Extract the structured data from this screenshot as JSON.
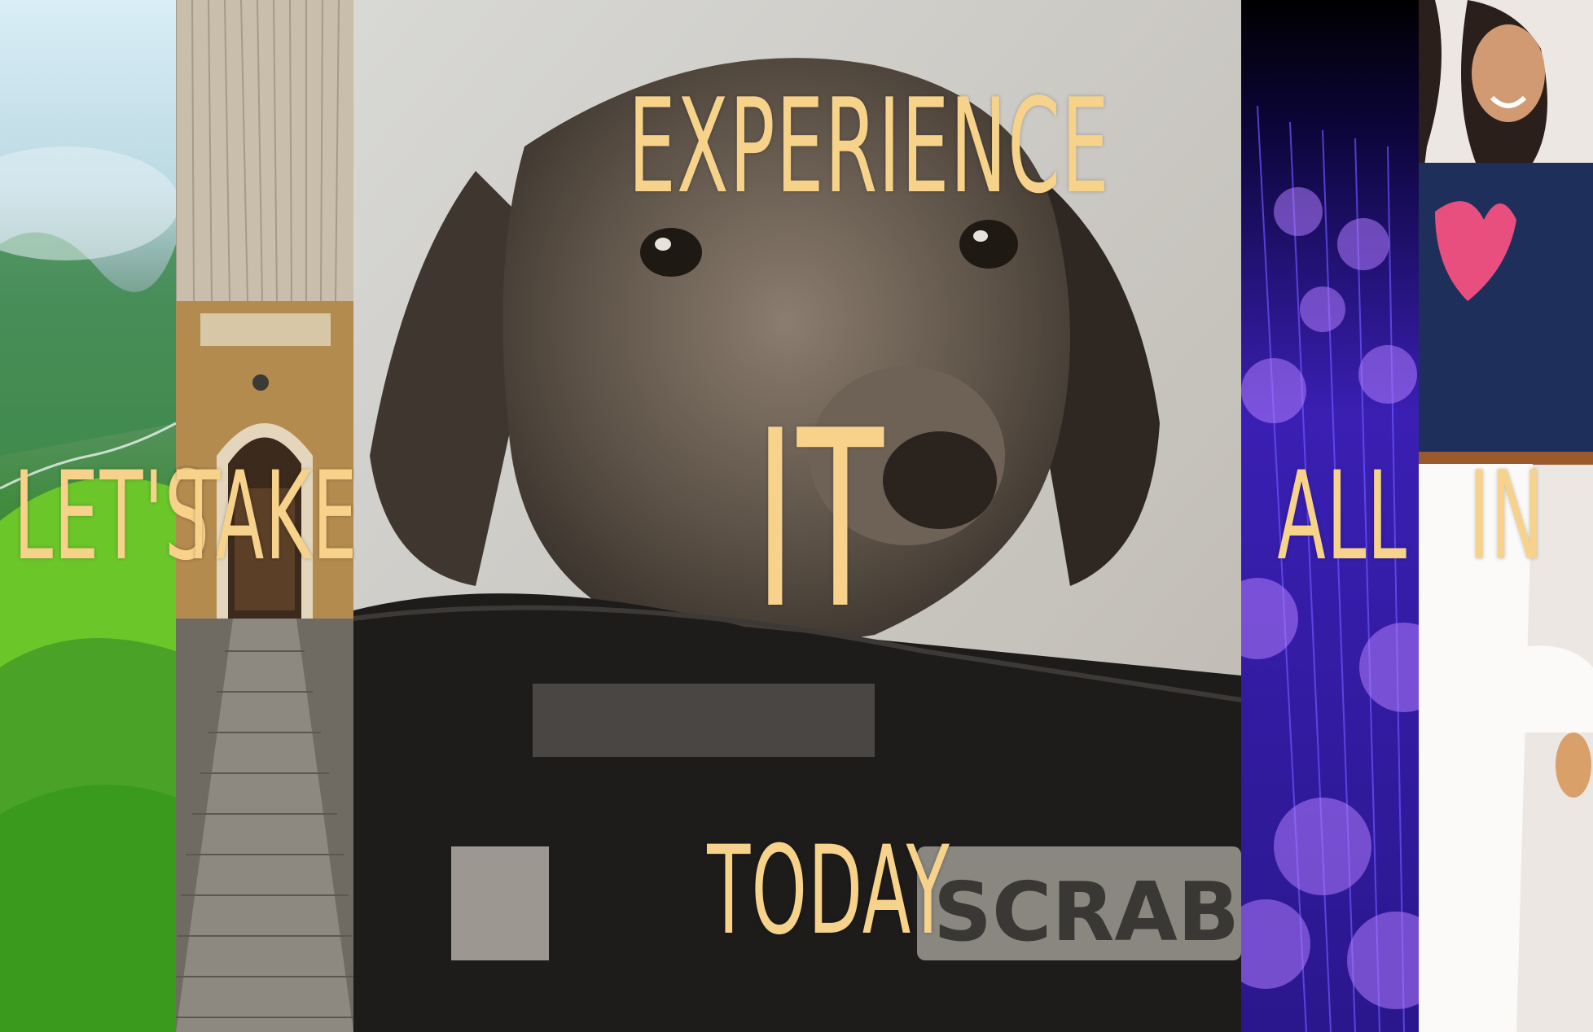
{
  "panels": [
    {
      "id": "mountains",
      "icon": "mountain-valley-image"
    },
    {
      "id": "boardwalk",
      "icon": "boardwalk-doorway-image"
    },
    {
      "id": "dog",
      "icon": "dog-on-board-game-image"
    },
    {
      "id": "fiber",
      "icon": "fiber-optic-lights-image"
    },
    {
      "id": "model",
      "icon": "smiling-woman-image"
    }
  ],
  "words": {
    "w1": "LET'S",
    "w2": "TAKE",
    "w3": "EXPERIENCE",
    "w4": "IT",
    "w5": "TODAY",
    "w6": "ALL",
    "w7": "IN"
  },
  "box_text": {
    "scrabble": "SCRAB"
  },
  "colors": {
    "text": "#f6d28a",
    "fiber": "#5a2fd6",
    "grass": "#4fb21f"
  }
}
